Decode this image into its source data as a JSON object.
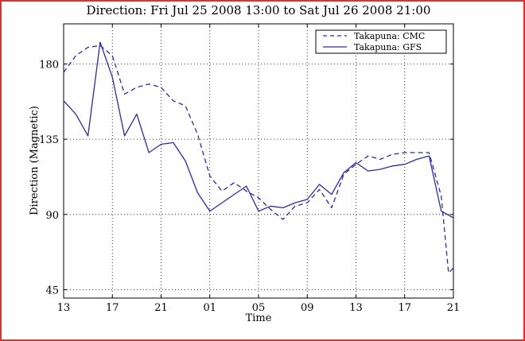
{
  "chart_data": {
    "type": "line",
    "title": "Direction: Fri Jul 25 2008 13:00 to Sat Jul 26 2008 21:00",
    "xlabel": "Time",
    "ylabel": "Direction (Magnetic)",
    "xlim": [
      13,
      45
    ],
    "ylim": [
      40,
      204
    ],
    "x_ticks": [
      13,
      17,
      21,
      25,
      29,
      33,
      37,
      41,
      45
    ],
    "x_tick_labels": [
      "13",
      "17",
      "21",
      "01",
      "05",
      "09",
      "13",
      "17",
      "21"
    ],
    "y_ticks": [
      45,
      90,
      135,
      180
    ],
    "y_tick_labels": [
      "45",
      "90",
      "135",
      "180"
    ],
    "grid": true,
    "legend_position": "top-right",
    "colors": {
      "line": "#2c2c9c",
      "grid": "#000000",
      "frame": "#e03030"
    },
    "series": [
      {
        "name": "Takapuna: CMC",
        "style": "dashed",
        "x": [
          13,
          14,
          15,
          16,
          17,
          18,
          19,
          20,
          21,
          22,
          23,
          24,
          25,
          26,
          27,
          28,
          29,
          30,
          31,
          32,
          33,
          34,
          35,
          36,
          37,
          38,
          39,
          40,
          41,
          42,
          43,
          44,
          44.6,
          45
        ],
        "y": [
          175,
          185,
          190,
          191,
          185,
          162,
          166,
          168,
          166,
          158,
          155,
          138,
          113,
          104,
          109,
          104,
          100,
          93,
          87,
          95,
          97,
          105,
          94,
          114,
          120,
          125,
          123,
          126,
          127,
          127,
          127,
          101,
          55,
          58
        ]
      },
      {
        "name": "Takapuna: GFS",
        "style": "solid",
        "x": [
          13,
          14,
          15,
          16,
          17,
          18,
          19,
          20,
          21,
          22,
          23,
          24,
          25,
          26,
          27,
          28,
          29,
          30,
          31,
          32,
          33,
          34,
          35,
          36,
          37,
          38,
          39,
          40,
          41,
          42,
          43,
          44,
          45
        ],
        "y": [
          158,
          150,
          137,
          193,
          172,
          137,
          150,
          127,
          132,
          133,
          122,
          103,
          92,
          97,
          102,
          107,
          92,
          95,
          94,
          97,
          99,
          108,
          102,
          115,
          121,
          116,
          117,
          119,
          120,
          123,
          125,
          92,
          88
        ]
      }
    ]
  }
}
